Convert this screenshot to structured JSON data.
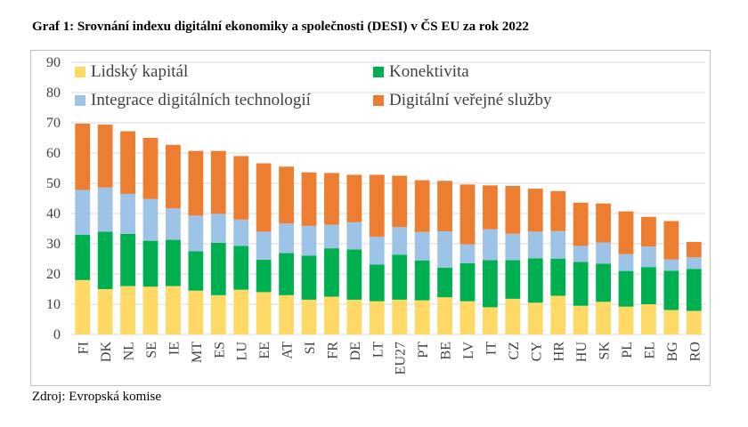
{
  "title": "Graf 1: Srovnání indexu digitální ekonomiky a společnosti (DESI) v ČS EU za rok 2022",
  "source": "Zdroj: Evropská komise",
  "colors": {
    "human_capital": "#FFD966",
    "connectivity": "#00B050",
    "integration": "#9DC3E6",
    "public_services": "#ED7D31",
    "grid": "#D9D9D9",
    "frame": "#BFBFBF",
    "text": "#404040"
  },
  "chart_data": {
    "type": "bar",
    "stacked": true,
    "title": "Graf 1: Srovnání indexu digitální ekonomiky a společnosti (DESI) v ČS EU za rok 2022",
    "xlabel": "",
    "ylabel": "",
    "ylim": [
      0,
      90
    ],
    "yticks": [
      0,
      10,
      20,
      30,
      40,
      50,
      60,
      70,
      80,
      90
    ],
    "grid": true,
    "legend_position": "top-left",
    "categories": [
      "FI",
      "DK",
      "NL",
      "SE",
      "IE",
      "MT",
      "ES",
      "LU",
      "EE",
      "AT",
      "SI",
      "FR",
      "DE",
      "LT",
      "EU27",
      "PT",
      "BE",
      "LV",
      "IT",
      "CZ",
      "CY",
      "HR",
      "HU",
      "SK",
      "PL",
      "EL",
      "BG",
      "RO"
    ],
    "series": [
      {
        "name": "Lidský kapitál",
        "color_key": "human_capital",
        "values": [
          18.0,
          15.0,
          16.0,
          15.8,
          16.0,
          14.5,
          13.0,
          14.8,
          14.0,
          13.0,
          11.5,
          12.5,
          11.5,
          11.0,
          11.5,
          11.3,
          12.3,
          11.0,
          9.0,
          11.8,
          10.5,
          12.8,
          9.5,
          10.8,
          9.2,
          10.0,
          8.1,
          7.8
        ]
      },
      {
        "name": "Konektivita",
        "color_key": "connectivity",
        "values": [
          15.0,
          19.0,
          17.3,
          15.2,
          15.3,
          13.0,
          17.3,
          14.5,
          10.7,
          13.9,
          14.6,
          16.0,
          16.6,
          12.1,
          14.9,
          13.2,
          9.8,
          12.6,
          15.6,
          12.8,
          14.7,
          12.3,
          14.5,
          12.6,
          11.8,
          12.3,
          13.0,
          13.9
        ]
      },
      {
        "name": "Integrace digitálních technologií",
        "color_key": "integration",
        "values": [
          14.8,
          14.6,
          13.2,
          13.8,
          10.4,
          11.8,
          9.6,
          8.7,
          9.3,
          9.8,
          9.8,
          7.8,
          9.0,
          9.2,
          9.1,
          9.4,
          12.0,
          6.2,
          10.2,
          8.7,
          8.8,
          9.1,
          5.3,
          7.0,
          5.6,
          6.8,
          3.7,
          3.8
        ]
      },
      {
        "name": "Digitální veřejné služby",
        "color_key": "public_services",
        "values": [
          21.9,
          20.8,
          20.7,
          20.2,
          21.0,
          21.4,
          20.8,
          21.0,
          22.6,
          18.8,
          17.7,
          17.1,
          15.7,
          20.5,
          17.0,
          17.1,
          16.7,
          19.8,
          14.5,
          15.8,
          14.2,
          13.2,
          14.3,
          12.9,
          14.1,
          9.8,
          12.7,
          5.1
        ]
      }
    ]
  }
}
